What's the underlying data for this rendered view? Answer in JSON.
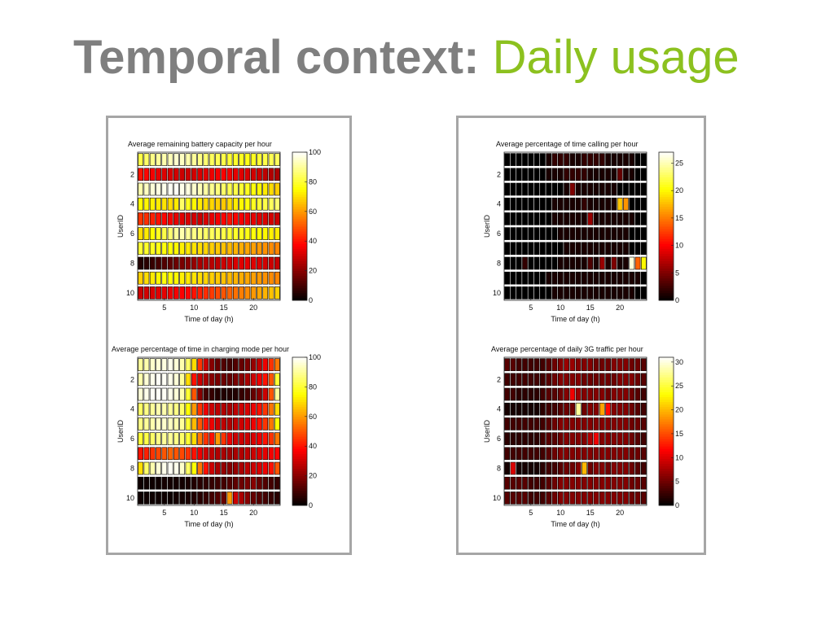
{
  "slide": {
    "title_main": "Temporal context:",
    "title_accent": "Daily usage",
    "title_color": "#7f7f7f",
    "accent_color": "#8cc11f"
  },
  "chart_data": [
    {
      "type": "heatmap",
      "title": "Average remaining battery capacity per hour",
      "xlabel": "Time of day (h)",
      "ylabel": "UserID",
      "x": [
        1,
        24
      ],
      "xticks": [
        5,
        10,
        15,
        20
      ],
      "y": [
        1,
        10
      ],
      "yticks": [
        2,
        4,
        6,
        8,
        10
      ],
      "colorbar": {
        "min": 0,
        "max": 100,
        "ticks": [
          0,
          20,
          40,
          60,
          80,
          100
        ]
      },
      "values": [
        [
          82,
          85,
          88,
          90,
          92,
          93,
          95,
          94,
          92,
          90,
          88,
          86,
          84,
          83,
          82,
          80,
          79,
          78,
          77,
          78,
          80,
          82,
          83,
          84
        ],
        [
          40,
          38,
          36,
          34,
          33,
          32,
          31,
          30,
          30,
          31,
          32,
          33,
          35,
          36,
          37,
          36,
          34,
          33,
          32,
          31,
          30,
          28,
          26,
          25
        ],
        [
          92,
          94,
          96,
          97,
          98,
          99,
          99,
          98,
          97,
          95,
          93,
          91,
          89,
          87,
          85,
          83,
          82,
          80,
          78,
          76,
          74,
          72,
          70,
          68
        ],
        [
          75,
          74,
          73,
          72,
          71,
          70,
          72,
          85,
          78,
          74,
          72,
          70,
          69,
          68,
          67,
          70,
          72,
          74,
          76,
          78,
          80,
          82,
          84,
          86
        ],
        [
          45,
          44,
          42,
          40,
          38,
          36,
          34,
          33,
          32,
          31,
          30,
          32,
          34,
          36,
          38,
          40,
          38,
          36,
          35,
          34,
          33,
          32,
          31,
          30
        ],
        [
          70,
          72,
          75,
          78,
          82,
          86,
          90,
          92,
          90,
          88,
          86,
          85,
          84,
          83,
          82,
          80,
          79,
          78,
          77,
          76,
          75,
          74,
          73,
          72
        ],
        [
          80,
          79,
          78,
          77,
          76,
          75,
          74,
          73,
          72,
          71,
          70,
          69,
          68,
          67,
          66,
          65,
          64,
          63,
          62,
          61,
          60,
          59,
          58,
          57
        ],
        [
          5,
          6,
          8,
          10,
          12,
          14,
          16,
          18,
          20,
          22,
          25,
          26,
          27,
          28,
          30,
          31,
          32,
          33,
          34,
          33,
          32,
          31,
          30,
          29
        ],
        [
          68,
          70,
          72,
          74,
          76,
          75,
          74,
          73,
          72,
          71,
          70,
          69,
          68,
          67,
          66,
          65,
          64,
          63,
          62,
          61,
          60,
          59,
          58,
          57
        ],
        [
          30,
          31,
          32,
          33,
          34,
          35,
          36,
          37,
          38,
          40,
          42,
          44,
          46,
          48,
          50,
          52,
          54,
          56,
          58,
          60,
          62,
          64,
          66,
          68
        ]
      ]
    },
    {
      "type": "heatmap",
      "title": "Average percentage of time calling per hour",
      "xlabel": "Time of day (h)",
      "ylabel": "UserID",
      "x": [
        1,
        24
      ],
      "xticks": [
        5,
        10,
        15,
        20
      ],
      "y": [
        1,
        10
      ],
      "yticks": [
        2,
        4,
        6,
        8,
        10
      ],
      "colorbar": {
        "min": 0,
        "max": 27,
        "ticks": [
          0,
          5,
          10,
          15,
          20,
          25
        ]
      },
      "values": [
        [
          0,
          0,
          0,
          0,
          0,
          0,
          0,
          1,
          2,
          2,
          2,
          1,
          1,
          2,
          2,
          2,
          2,
          1,
          1,
          1,
          1,
          1,
          0,
          0
        ],
        [
          0,
          0,
          0,
          0,
          0,
          0,
          0,
          1,
          1,
          1,
          2,
          2,
          2,
          2,
          1,
          1,
          1,
          1,
          1,
          4,
          1,
          1,
          0,
          0
        ],
        [
          0,
          0,
          0,
          0,
          0,
          0,
          0,
          0,
          0,
          0,
          1,
          5,
          1,
          1,
          1,
          1,
          1,
          1,
          1,
          0,
          0,
          0,
          0,
          0
        ],
        [
          0,
          0,
          0,
          0,
          0,
          0,
          0,
          0,
          1,
          1,
          1,
          1,
          1,
          2,
          1,
          1,
          1,
          1,
          1,
          18,
          16,
          0,
          0,
          0
        ],
        [
          0,
          0,
          0,
          0,
          0,
          0,
          0,
          0,
          1,
          1,
          1,
          1,
          1,
          1,
          6,
          1,
          1,
          1,
          1,
          1,
          1,
          1,
          0,
          0
        ],
        [
          0,
          0,
          0,
          0,
          0,
          0,
          0,
          0,
          0,
          1,
          1,
          1,
          1,
          1,
          1,
          1,
          1,
          1,
          1,
          1,
          1,
          0,
          0,
          0
        ],
        [
          0,
          0,
          0,
          0,
          0,
          0,
          0,
          0,
          0,
          0,
          1,
          1,
          1,
          1,
          1,
          1,
          1,
          1,
          1,
          1,
          1,
          0,
          0,
          0
        ],
        [
          0,
          0,
          0,
          2,
          0,
          0,
          0,
          0,
          0,
          1,
          1,
          1,
          1,
          1,
          3,
          1,
          6,
          1,
          5,
          1,
          1,
          26,
          14,
          20
        ],
        [
          0,
          0,
          0,
          0,
          0,
          0,
          0,
          1,
          1,
          1,
          1,
          1,
          1,
          1,
          1,
          1,
          1,
          1,
          1,
          1,
          1,
          1,
          1,
          0
        ],
        [
          0,
          0,
          0,
          0,
          0,
          0,
          0,
          0,
          1,
          1,
          1,
          1,
          1,
          1,
          1,
          1,
          1,
          1,
          1,
          1,
          1,
          1,
          0,
          0
        ]
      ]
    },
    {
      "type": "heatmap",
      "title": "Average percentage of time in charging mode per hour",
      "xlabel": "Time of day (h)",
      "ylabel": "UserID",
      "x": [
        1,
        24
      ],
      "xticks": [
        5,
        10,
        15,
        20
      ],
      "y": [
        1,
        10
      ],
      "yticks": [
        2,
        4,
        6,
        8,
        10
      ],
      "colorbar": {
        "min": 0,
        "max": 100,
        "ticks": [
          0,
          20,
          40,
          60,
          80,
          100
        ]
      },
      "values": [
        [
          90,
          92,
          95,
          96,
          97,
          98,
          96,
          92,
          85,
          70,
          45,
          30,
          20,
          15,
          12,
          10,
          12,
          15,
          18,
          22,
          28,
          35,
          45,
          55
        ],
        [
          92,
          96,
          98,
          99,
          99,
          98,
          96,
          90,
          70,
          40,
          30,
          25,
          20,
          18,
          16,
          15,
          18,
          20,
          25,
          30,
          35,
          40,
          50,
          80
        ],
        [
          96,
          98,
          99,
          99,
          99,
          98,
          96,
          92,
          80,
          50,
          20,
          10,
          8,
          5,
          5,
          5,
          5,
          8,
          10,
          15,
          20,
          30,
          50,
          90
        ],
        [
          85,
          88,
          90,
          92,
          92,
          90,
          88,
          85,
          75,
          60,
          45,
          35,
          30,
          28,
          26,
          25,
          28,
          30,
          32,
          35,
          40,
          45,
          55,
          70
        ],
        [
          88,
          90,
          92,
          94,
          95,
          94,
          92,
          90,
          80,
          65,
          50,
          40,
          35,
          30,
          28,
          26,
          28,
          30,
          32,
          35,
          40,
          45,
          55,
          75
        ],
        [
          80,
          82,
          85,
          88,
          90,
          90,
          88,
          85,
          80,
          70,
          55,
          45,
          40,
          60,
          45,
          35,
          30,
          30,
          30,
          32,
          35,
          40,
          45,
          55
        ],
        [
          40,
          42,
          45,
          48,
          50,
          52,
          50,
          48,
          45,
          40,
          35,
          30,
          28,
          26,
          25,
          24,
          25,
          26,
          28,
          30,
          32,
          34,
          36,
          38
        ],
        [
          70,
          85,
          92,
          96,
          98,
          99,
          98,
          95,
          85,
          75,
          55,
          40,
          30,
          25,
          22,
          20,
          22,
          25,
          28,
          30,
          32,
          35,
          40,
          50
        ],
        [
          2,
          2,
          2,
          2,
          3,
          3,
          3,
          3,
          4,
          5,
          6,
          7,
          8,
          9,
          10,
          12,
          14,
          16,
          18,
          20,
          15,
          12,
          10,
          8
        ],
        [
          2,
          2,
          2,
          2,
          2,
          2,
          3,
          3,
          4,
          5,
          6,
          8,
          10,
          12,
          15,
          60,
          30,
          25,
          20,
          15,
          12,
          10,
          8,
          6
        ]
      ]
    },
    {
      "type": "heatmap",
      "title": "Average percentage of daily 3G traffic per hour",
      "xlabel": "Time of day (h)",
      "ylabel": "UserID",
      "x": [
        1,
        24
      ],
      "xticks": [
        5,
        10,
        15,
        20
      ],
      "y": [
        1,
        10
      ],
      "yticks": [
        2,
        4,
        6,
        8,
        10
      ],
      "colorbar": {
        "min": 0,
        "max": 31,
        "ticks": [
          0,
          5,
          10,
          15,
          20,
          25,
          30
        ]
      },
      "values": [
        [
          4,
          4,
          3,
          3,
          3,
          3,
          3,
          4,
          5,
          6,
          7,
          7,
          6,
          6,
          6,
          5,
          5,
          5,
          6,
          6,
          6,
          5,
          5,
          4
        ],
        [
          3,
          3,
          3,
          3,
          3,
          3,
          3,
          4,
          5,
          6,
          6,
          6,
          6,
          5,
          5,
          5,
          5,
          5,
          5,
          6,
          6,
          6,
          5,
          4
        ],
        [
          3,
          3,
          2,
          2,
          2,
          2,
          3,
          4,
          4,
          5,
          6,
          11,
          7,
          6,
          6,
          6,
          6,
          5,
          6,
          6,
          6,
          5,
          4,
          3
        ],
        [
          1,
          1,
          1,
          1,
          1,
          1,
          2,
          3,
          3,
          4,
          5,
          5,
          28,
          5,
          6,
          6,
          19,
          12,
          6,
          6,
          6,
          5,
          4,
          3
        ],
        [
          3,
          3,
          3,
          3,
          3,
          3,
          3,
          4,
          5,
          6,
          6,
          6,
          6,
          6,
          6,
          6,
          6,
          6,
          6,
          6,
          6,
          5,
          5,
          4
        ],
        [
          2,
          2,
          2,
          2,
          2,
          2,
          3,
          4,
          4,
          5,
          6,
          6,
          6,
          6,
          8,
          11,
          6,
          6,
          6,
          6,
          6,
          5,
          4,
          3
        ],
        [
          3,
          3,
          3,
          3,
          3,
          3,
          3,
          4,
          5,
          6,
          6,
          6,
          6,
          6,
          6,
          6,
          6,
          6,
          6,
          6,
          6,
          5,
          5,
          4
        ],
        [
          1,
          10,
          1,
          1,
          1,
          1,
          2,
          3,
          3,
          4,
          5,
          5,
          6,
          20,
          5,
          6,
          6,
          5,
          6,
          6,
          6,
          5,
          4,
          3
        ],
        [
          4,
          4,
          4,
          4,
          3,
          3,
          3,
          4,
          5,
          6,
          6,
          6,
          6,
          6,
          6,
          6,
          6,
          6,
          6,
          6,
          6,
          5,
          5,
          4
        ],
        [
          4,
          4,
          4,
          4,
          3,
          3,
          3,
          4,
          5,
          6,
          6,
          6,
          6,
          6,
          6,
          6,
          6,
          6,
          6,
          6,
          6,
          5,
          5,
          4
        ]
      ]
    }
  ]
}
